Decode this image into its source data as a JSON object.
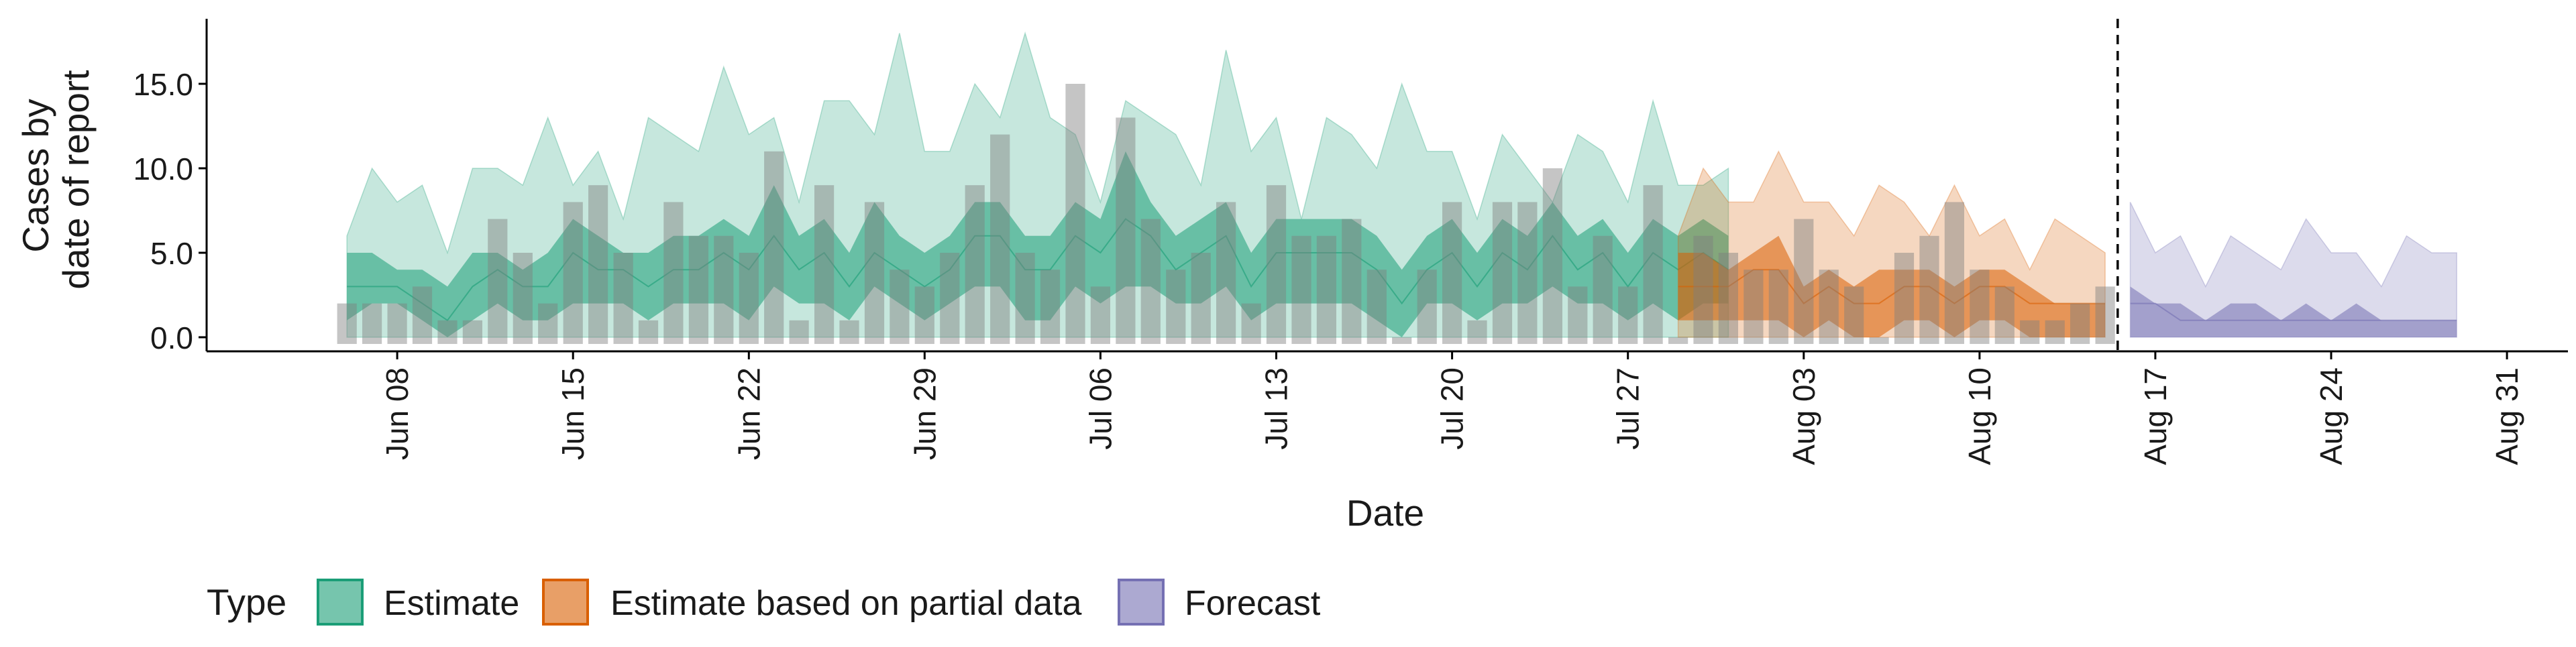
{
  "chart_data": {
    "type": "area",
    "xlabel": "Date",
    "ylabel_lines": [
      "Cases by",
      "date of report"
    ],
    "xlim": [
      "2020-06-01",
      "2020-09-02"
    ],
    "ylim": [
      0,
      19
    ],
    "yticks": [
      0,
      5,
      10,
      15
    ],
    "ytick_labels": [
      "0.0",
      "5.0",
      "10.0",
      "15.0"
    ],
    "xticks": [
      "2020-06-08",
      "2020-06-15",
      "2020-06-22",
      "2020-06-29",
      "2020-07-06",
      "2020-07-13",
      "2020-07-20",
      "2020-07-27",
      "2020-08-03",
      "2020-08-10",
      "2020-08-17",
      "2020-08-24",
      "2020-08-31"
    ],
    "xtick_labels": [
      "Jun 08",
      "Jun 15",
      "Jun 22",
      "Jun 29",
      "Jul 06",
      "Jul 13",
      "Jul 20",
      "Jul 27",
      "Aug 03",
      "Aug 10",
      "Aug 17",
      "Aug 24",
      "Aug 31"
    ],
    "grid": false,
    "legend": {
      "position": "bottom",
      "title": "Type"
    },
    "forecast_boundary": "2020-08-15",
    "observed_cases": {
      "start": "2020-06-06",
      "values": [
        2,
        2,
        2,
        3,
        1,
        1,
        7,
        5,
        2,
        8,
        9,
        5,
        1,
        8,
        6,
        6,
        5,
        11,
        1,
        9,
        1,
        8,
        4,
        3,
        5,
        9,
        12,
        5,
        4,
        15,
        3,
        13,
        7,
        4,
        5,
        8,
        2,
        9,
        6,
        6,
        7,
        4,
        0,
        4,
        8,
        1,
        8,
        8,
        10,
        3,
        6,
        3,
        9,
        0,
        6,
        5,
        4,
        4,
        7,
        4,
        3,
        0,
        5,
        6,
        8,
        4,
        3,
        1,
        1,
        2,
        3
      ]
    },
    "series": [
      {
        "name": "Estimate",
        "color": "#1b9e77",
        "start": "2020-06-06",
        "median": [
          3,
          3,
          3,
          2,
          1,
          3,
          4,
          3,
          3,
          5,
          4,
          4,
          3,
          4,
          4,
          5,
          4,
          6,
          4,
          5,
          3,
          5,
          4,
          3,
          4,
          6,
          6,
          4,
          4,
          6,
          5,
          7,
          6,
          4,
          5,
          6,
          3,
          5,
          5,
          5,
          5,
          4,
          2,
          4,
          5,
          3,
          5,
          4,
          6,
          4,
          5,
          3,
          5,
          4,
          5,
          4
        ],
        "lower_90": [
          0,
          0,
          0,
          0,
          0,
          0,
          0,
          0,
          0,
          0,
          0,
          0,
          0,
          0,
          0,
          0,
          0,
          0,
          0,
          0,
          0,
          0,
          0,
          0,
          0,
          0,
          0,
          0,
          0,
          0,
          0,
          0,
          0,
          0,
          0,
          0,
          0,
          0,
          0,
          0,
          0,
          0,
          0,
          0,
          0,
          0,
          0,
          0,
          0,
          0,
          0,
          0,
          0,
          0,
          0,
          0
        ],
        "upper_90": [
          6,
          10,
          8,
          9,
          5,
          10,
          10,
          9,
          13,
          9,
          11,
          7,
          13,
          12,
          11,
          16,
          12,
          13,
          8,
          14,
          14,
          12,
          18,
          11,
          11,
          15,
          13,
          18,
          13,
          12,
          8,
          14,
          13,
          12,
          9,
          17,
          11,
          13,
          7,
          13,
          12,
          10,
          15,
          11,
          11,
          7,
          12,
          10,
          8,
          12,
          11,
          8,
          14,
          9,
          9,
          10
        ],
        "lower_50": [
          1,
          2,
          2,
          1,
          0,
          1,
          2,
          1,
          1,
          2,
          2,
          2,
          1,
          2,
          2,
          2,
          1,
          3,
          2,
          2,
          1,
          3,
          2,
          1,
          2,
          3,
          3,
          1,
          1,
          3,
          2,
          3,
          3,
          2,
          2,
          3,
          1,
          2,
          2,
          2,
          2,
          1,
          0,
          2,
          2,
          1,
          2,
          2,
          3,
          2,
          2,
          1,
          2,
          1,
          2,
          2
        ],
        "upper_50": [
          5,
          5,
          4,
          4,
          3,
          5,
          5,
          4,
          5,
          7,
          6,
          5,
          5,
          6,
          6,
          7,
          6,
          9,
          6,
          7,
          5,
          8,
          6,
          5,
          6,
          8,
          8,
          6,
          6,
          8,
          7,
          11,
          8,
          6,
          7,
          8,
          5,
          7,
          7,
          7,
          7,
          6,
          4,
          6,
          7,
          5,
          7,
          6,
          8,
          6,
          7,
          5,
          7,
          6,
          7,
          6
        ]
      },
      {
        "name": "Estimate based on partial data",
        "color": "#d95f02",
        "start": "2020-07-29",
        "median": [
          3,
          3,
          3,
          4,
          4,
          2,
          3,
          2,
          2,
          3,
          3,
          2,
          3,
          3,
          2,
          2,
          2,
          2
        ],
        "lower_90": [
          0,
          0,
          0,
          0,
          0,
          0,
          0,
          0,
          0,
          0,
          0,
          0,
          0,
          0,
          0,
          0,
          0,
          0
        ],
        "upper_90": [
          6,
          10,
          8,
          8,
          11,
          8,
          8,
          6,
          9,
          8,
          6,
          9,
          6,
          7,
          4,
          7,
          6,
          5
        ],
        "lower_50": [
          1,
          1,
          1,
          1,
          1,
          0,
          1,
          0,
          0,
          1,
          1,
          0,
          1,
          1,
          0,
          0,
          0,
          0
        ],
        "upper_50": [
          5,
          5,
          4,
          5,
          6,
          3,
          4,
          3,
          4,
          4,
          4,
          3,
          4,
          4,
          3,
          2,
          2,
          2
        ]
      },
      {
        "name": "Forecast",
        "color": "#7570b3",
        "start": "2020-08-16",
        "median": [
          2,
          2,
          1,
          1,
          1,
          1,
          1,
          1,
          1,
          1,
          1,
          1,
          1,
          1
        ],
        "lower_90": [
          0,
          0,
          0,
          0,
          0,
          0,
          0,
          0,
          0,
          0,
          0,
          0,
          0,
          0
        ],
        "upper_90": [
          8,
          5,
          6,
          3,
          6,
          5,
          4,
          7,
          5,
          5,
          3,
          6,
          5,
          5
        ],
        "lower_50": [
          0,
          0,
          0,
          0,
          0,
          0,
          0,
          0,
          0,
          0,
          0,
          0,
          0,
          0
        ],
        "upper_50": [
          3,
          2,
          2,
          1,
          2,
          2,
          1,
          2,
          1,
          2,
          1,
          1,
          1,
          1
        ]
      }
    ]
  },
  "legend": {
    "title": "Type",
    "items": [
      {
        "label": "Estimate",
        "color": "#1b9e77"
      },
      {
        "label": "Estimate based on partial data",
        "color": "#d95f02"
      },
      {
        "label": "Forecast",
        "color": "#7570b3"
      }
    ]
  }
}
